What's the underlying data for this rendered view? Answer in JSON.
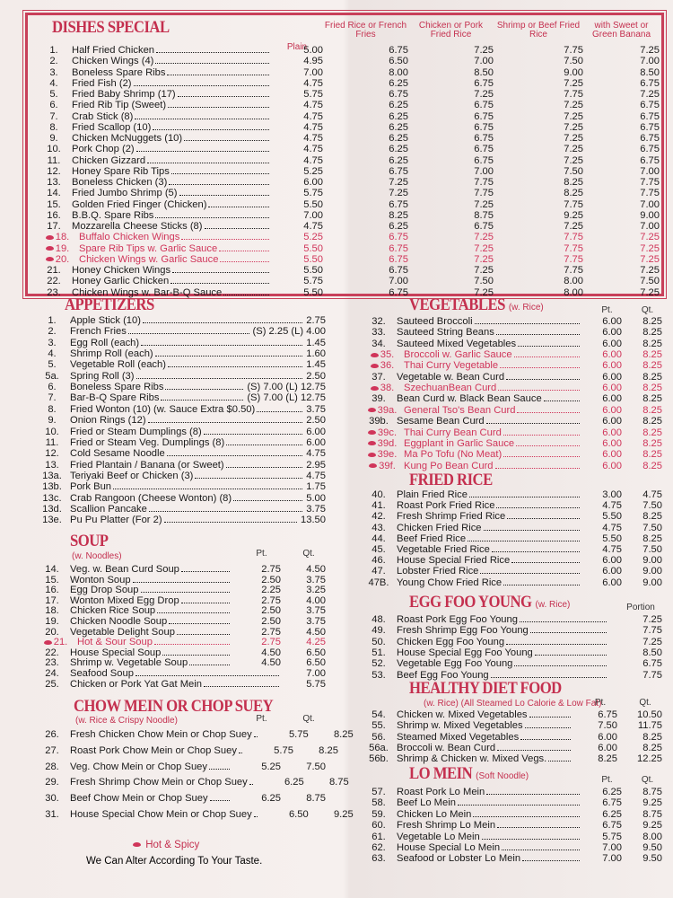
{
  "sections": [
    {
      "title": "DISHES SPECIAL",
      "columns": [
        "Plain",
        "Fried Rice or French Fries",
        "Chicken or Pork Fried Rice",
        "Shrimp or Beef Fried Rice",
        "with Sweet or Green Banana"
      ],
      "items": [
        {
          "num": "1.",
          "name": "Half Fried Chicken",
          "prices": [
            "5.00",
            "6.75",
            "7.25",
            "7.75",
            "7.25"
          ]
        },
        {
          "num": "2.",
          "name": "Chicken Wings (4)",
          "prices": [
            "4.95",
            "6.50",
            "7.00",
            "7.50",
            "7.00"
          ]
        },
        {
          "num": "3.",
          "name": "Boneless Spare Ribs",
          "prices": [
            "7.00",
            "8.00",
            "8.50",
            "9.00",
            "8.50"
          ]
        },
        {
          "num": "4.",
          "name": "Fried Fish (2)",
          "prices": [
            "4.75",
            "6.25",
            "6.75",
            "7.25",
            "6.75"
          ]
        },
        {
          "num": "5.",
          "name": "Fried Baby Shrimp (17)",
          "prices": [
            "5.75",
            "6.75",
            "7.25",
            "7.75",
            "7.25"
          ]
        },
        {
          "num": "6.",
          "name": "Fried Rib Tip (Sweet)",
          "prices": [
            "4.75",
            "6.25",
            "6.75",
            "7.25",
            "6.75"
          ]
        },
        {
          "num": "7.",
          "name": "Crab Stick (8)",
          "prices": [
            "4.75",
            "6.25",
            "6.75",
            "7.25",
            "6.75"
          ]
        },
        {
          "num": "8.",
          "name": "Fried Scallop (10)",
          "prices": [
            "4.75",
            "6.25",
            "6.75",
            "7.25",
            "6.75"
          ]
        },
        {
          "num": "9.",
          "name": "Chicken McNuggets (10)",
          "prices": [
            "4.75",
            "6.25",
            "6.75",
            "7.25",
            "6.75"
          ]
        },
        {
          "num": "10.",
          "name": "Pork Chop (2)",
          "prices": [
            "4.75",
            "6.25",
            "6.75",
            "7.25",
            "6.75"
          ]
        },
        {
          "num": "11.",
          "name": "Chicken Gizzard",
          "prices": [
            "4.75",
            "6.25",
            "6.75",
            "7.25",
            "6.75"
          ]
        },
        {
          "num": "12.",
          "name": "Honey Spare Rib Tips",
          "prices": [
            "5.25",
            "6.75",
            "7.00",
            "7.50",
            "7.00"
          ]
        },
        {
          "num": "13.",
          "name": "Boneless Chicken (3)",
          "prices": [
            "6.00",
            "7.25",
            "7.75",
            "8.25",
            "7.75"
          ]
        },
        {
          "num": "14.",
          "name": "Fried Jumbo Shrimp (5)",
          "prices": [
            "5.75",
            "7.25",
            "7.75",
            "8.25",
            "7.75"
          ]
        },
        {
          "num": "15.",
          "name": "Golden Fried Finger (Chicken)",
          "prices": [
            "5.50",
            "6.75",
            "7.25",
            "7.75",
            "7.00"
          ]
        },
        {
          "num": "16.",
          "name": "B.B.Q. Spare Ribs",
          "prices": [
            "7.00",
            "8.25",
            "8.75",
            "9.25",
            "9.00"
          ]
        },
        {
          "num": "17.",
          "name": "Mozzarella Cheese Sticks (8)",
          "prices": [
            "4.75",
            "6.25",
            "6.75",
            "7.25",
            "7.00"
          ]
        },
        {
          "num": "18.",
          "name": "Buffalo Chicken Wings",
          "prices": [
            "5.25",
            "6.75",
            "7.25",
            "7.75",
            "7.25"
          ],
          "spicy": true
        },
        {
          "num": "19.",
          "name": "Spare Rib Tips w. Garlic Sauce",
          "prices": [
            "5.50",
            "6.75",
            "7.25",
            "7.75",
            "7.25"
          ],
          "spicy": true
        },
        {
          "num": "20.",
          "name": "Chicken Wings w. Garlic Sauce",
          "prices": [
            "5.50",
            "6.75",
            "7.25",
            "7.75",
            "7.25"
          ],
          "spicy": true
        },
        {
          "num": "21.",
          "name": "Honey Chicken Wings",
          "prices": [
            "5.50",
            "6.75",
            "7.25",
            "7.75",
            "7.25"
          ]
        },
        {
          "num": "22.",
          "name": "Honey Garlic Chicken",
          "prices": [
            "5.75",
            "7.00",
            "7.50",
            "8.00",
            "7.50"
          ]
        },
        {
          "num": "23.",
          "name": "Chicken Wings w. Bar-B-Q Sauce",
          "prices": [
            "5.50",
            "6.75",
            "7.25",
            "8.00",
            "7.25"
          ]
        }
      ]
    },
    {
      "title": "APPETIZERS",
      "items": [
        {
          "num": "1.",
          "name": "Apple Stick (10)",
          "prices": [
            "2.75"
          ]
        },
        {
          "num": "2.",
          "name": "French Fries",
          "prices": [
            "(S) 2.25 (L) 4.00"
          ]
        },
        {
          "num": "3.",
          "name": "Egg Roll (each)",
          "prices": [
            "1.45"
          ]
        },
        {
          "num": "4.",
          "name": "Shrimp Roll (each)",
          "prices": [
            "1.60"
          ]
        },
        {
          "num": "5.",
          "name": "Vegetable Roll (each)",
          "prices": [
            "1.45"
          ]
        },
        {
          "num": "5a.",
          "name": "Spring Roll (3)",
          "prices": [
            "2.50"
          ]
        },
        {
          "num": "6.",
          "name": "Boneless Spare Ribs",
          "prices": [
            "(S) 7.00 (L) 12.75"
          ]
        },
        {
          "num": "7.",
          "name": "Bar-B-Q Spare Ribs",
          "prices": [
            "(S) 7.00 (L) 12.75"
          ]
        },
        {
          "num": "8.",
          "name": "Fried Wonton (10) (w. Sauce Extra $0.50)",
          "prices": [
            "3.75"
          ]
        },
        {
          "num": "9.",
          "name": "Onion Rings (12)",
          "prices": [
            "2.50"
          ]
        },
        {
          "num": "10.",
          "name": "Fried or Steam Dumplings (8)",
          "prices": [
            "6.00"
          ]
        },
        {
          "num": "11.",
          "name": "Fried or Steam Veg. Dumplings (8)",
          "prices": [
            "6.00"
          ]
        },
        {
          "num": "12.",
          "name": "Cold Sesame Noodle",
          "prices": [
            "4.75"
          ]
        },
        {
          "num": "13.",
          "name": "Fried Plantain / Banana (or Sweet)",
          "prices": [
            "2.95"
          ]
        },
        {
          "num": "13a.",
          "name": "Teriyaki Beef or Chicken (3)",
          "prices": [
            "4.75"
          ]
        },
        {
          "num": "13b.",
          "name": "Pork Bun",
          "prices": [
            "1.75"
          ]
        },
        {
          "num": "13c.",
          "name": "Crab Rangoon (Cheese Wonton) (8)",
          "prices": [
            "5.00"
          ]
        },
        {
          "num": "13d.",
          "name": "Scallion Pancake",
          "prices": [
            "3.75"
          ]
        },
        {
          "num": "13e.",
          "name": "Pu Pu Platter (For 2)",
          "prices": [
            "13.50"
          ]
        }
      ]
    },
    {
      "title": "SOUP",
      "note": "(w. Noodles)",
      "columns": [
        "Pt.",
        "Qt."
      ],
      "items": [
        {
          "num": "14.",
          "name": "Veg. w. Bean Curd Soup",
          "prices": [
            "2.75",
            "4.50"
          ]
        },
        {
          "num": "15.",
          "name": "Wonton Soup",
          "prices": [
            "2.50",
            "3.75"
          ]
        },
        {
          "num": "16.",
          "name": "Egg Drop Soup",
          "prices": [
            "2.25",
            "3.25"
          ]
        },
        {
          "num": "17.",
          "name": "Wonton Mixed Egg Drop",
          "prices": [
            "2.75",
            "4.00"
          ]
        },
        {
          "num": "18.",
          "name": "Chicken Rice Soup",
          "prices": [
            "2.50",
            "3.75"
          ]
        },
        {
          "num": "19.",
          "name": "Chicken Noodle Soup",
          "prices": [
            "2.50",
            "3.75"
          ]
        },
        {
          "num": "20.",
          "name": "Vegetable Delight Soup",
          "prices": [
            "2.75",
            "4.50"
          ]
        },
        {
          "num": "21.",
          "name": "Hot & Sour Soup",
          "prices": [
            "2.75",
            "4.25"
          ],
          "spicy": true
        },
        {
          "num": "22.",
          "name": "House Special Soup",
          "prices": [
            "4.50",
            "6.50"
          ]
        },
        {
          "num": "23.",
          "name": "Shrimp w. Vegetable Soup",
          "prices": [
            "4.50",
            "6.50"
          ]
        },
        {
          "num": "24.",
          "name": "Seafood Soup",
          "prices": [
            "7.00"
          ]
        },
        {
          "num": "25.",
          "name": "Chicken or Pork Yat Gat Mein",
          "prices": [
            "5.75"
          ]
        }
      ]
    },
    {
      "title": "CHOW MEIN OR CHOP SUEY",
      "note": "(w. Rice & Crispy Noodle)",
      "columns": [
        "Pt.",
        "Qt."
      ],
      "items": [
        {
          "num": "26.",
          "name": "Fresh Chicken Chow Mein or Chop Suey",
          "prices": [
            "5.75",
            "8.25"
          ]
        },
        {
          "num": "27.",
          "name": "Roast Pork Chow Mein or Chop Suey",
          "prices": [
            "5.75",
            "8.25"
          ]
        },
        {
          "num": "28.",
          "name": "Veg. Chow Mein or Chop Suey",
          "prices": [
            "5.25",
            "7.50"
          ]
        },
        {
          "num": "29.",
          "name": "Fresh Shrimp Chow Mein or Chop Suey",
          "prices": [
            "6.25",
            "8.75"
          ]
        },
        {
          "num": "30.",
          "name": "Beef Chow Mein or Chop Suey",
          "prices": [
            "6.25",
            "8.75"
          ]
        },
        {
          "num": "31.",
          "name": "House Special Chow Mein or Chop Suey",
          "prices": [
            "6.50",
            "9.25"
          ]
        }
      ]
    },
    {
      "title": "VEGETABLES",
      "note": "(w. Rice)",
      "columns": [
        "Pt.",
        "Qt."
      ],
      "items": [
        {
          "num": "32.",
          "name": "Sauteed Broccoli",
          "prices": [
            "6.00",
            "8.25"
          ]
        },
        {
          "num": "33.",
          "name": "Sauteed String Beans",
          "prices": [
            "6.00",
            "8.25"
          ]
        },
        {
          "num": "34.",
          "name": "Sauteed Mixed Vegetables",
          "prices": [
            "6.00",
            "8.25"
          ]
        },
        {
          "num": "35.",
          "name": "Broccoli w. Garlic Sauce",
          "prices": [
            "6.00",
            "8.25"
          ],
          "spicy": true
        },
        {
          "num": "36.",
          "name": "Thai Curry Vegetable",
          "prices": [
            "6.00",
            "8.25"
          ],
          "spicy": true
        },
        {
          "num": "37.",
          "name": "Vegetable w. Bean Curd",
          "prices": [
            "6.00",
            "8.25"
          ]
        },
        {
          "num": "38.",
          "name": "SzechuanBean Curd",
          "prices": [
            "6.00",
            "8.25"
          ],
          "spicy": true
        },
        {
          "num": "39.",
          "name": "Bean Curd w. Black Bean Sauce",
          "prices": [
            "6.00",
            "8.25"
          ]
        },
        {
          "num": "39a.",
          "name": "General Tso's Bean Curd",
          "prices": [
            "6.00",
            "8.25"
          ],
          "spicy": true
        },
        {
          "num": "39b.",
          "name": "Sesame Bean Curd",
          "prices": [
            "6.00",
            "8.25"
          ]
        },
        {
          "num": "39c.",
          "name": "Thai Curry Bean Curd",
          "prices": [
            "6.00",
            "8.25"
          ],
          "spicy": true
        },
        {
          "num": "39d.",
          "name": "Eggplant in Garlic Sauce",
          "prices": [
            "6.00",
            "8.25"
          ],
          "spicy": true
        },
        {
          "num": "39e.",
          "name": "Ma Po Tofu (No Meat)",
          "prices": [
            "6.00",
            "8.25"
          ],
          "spicy": true
        },
        {
          "num": "39f.",
          "name": "Kung Po Bean Curd",
          "prices": [
            "6.00",
            "8.25"
          ],
          "spicy": true
        }
      ]
    },
    {
      "title": "FRIED RICE",
      "items": [
        {
          "num": "40.",
          "name": "Plain Fried Rice",
          "prices": [
            "3.00",
            "4.75"
          ]
        },
        {
          "num": "41.",
          "name": "Roast Pork Fried Rice",
          "prices": [
            "4.75",
            "7.50"
          ]
        },
        {
          "num": "42.",
          "name": "Fresh Shrimp Fried Rice",
          "prices": [
            "5.50",
            "8.25"
          ]
        },
        {
          "num": "43.",
          "name": "Chicken Fried Rice",
          "prices": [
            "4.75",
            "7.50"
          ]
        },
        {
          "num": "44.",
          "name": "Beef Fried Rice",
          "prices": [
            "5.50",
            "8.25"
          ]
        },
        {
          "num": "45.",
          "name": "Vegetable Fried Rice",
          "prices": [
            "4.75",
            "7.50"
          ]
        },
        {
          "num": "46.",
          "name": "House Special Fried Rice",
          "prices": [
            "6.00",
            "9.00"
          ]
        },
        {
          "num": "47.",
          "name": "Lobster Fried Rice",
          "prices": [
            "6.00",
            "9.00"
          ]
        },
        {
          "num": "47B.",
          "name": "Young Chow Fried Rice",
          "prices": [
            "6.00",
            "9.00"
          ]
        }
      ]
    },
    {
      "title": "EGG FOO YOUNG",
      "note": "(w. Rice)",
      "columns": [
        "Portion"
      ],
      "items": [
        {
          "num": "48.",
          "name": "Roast Pork Egg Foo Young",
          "prices": [
            "7.25"
          ]
        },
        {
          "num": "49.",
          "name": "Fresh Shrimp Egg Foo Young",
          "prices": [
            "7.75"
          ]
        },
        {
          "num": "50.",
          "name": "Chicken Egg Foo Young",
          "prices": [
            "7.25"
          ]
        },
        {
          "num": "51.",
          "name": "House Special Egg Foo Young",
          "prices": [
            "8.50"
          ]
        },
        {
          "num": "52.",
          "name": "Vegetable Egg Foo Young",
          "prices": [
            "6.75"
          ]
        },
        {
          "num": "53.",
          "name": "Beef Egg Foo Young",
          "prices": [
            "7.75"
          ]
        }
      ]
    },
    {
      "title": "HEALTHY DIET FOOD",
      "note": "(w. Rice) (All Steamed Lo Calorie & Low Fat)",
      "columns": [
        "Pt.",
        "Qt."
      ],
      "items": [
        {
          "num": "54.",
          "name": "Chicken w. Mixed Vegetables",
          "prices": [
            "6.75",
            "10.50"
          ]
        },
        {
          "num": "55.",
          "name": "Shrimp w. Mixed Vegetables",
          "prices": [
            "7.50",
            "11.75"
          ]
        },
        {
          "num": "56.",
          "name": "Steamed Mixed Vegetables",
          "prices": [
            "6.00",
            "8.25"
          ]
        },
        {
          "num": "56a.",
          "name": "Broccoli w. Bean Curd",
          "prices": [
            "6.00",
            "8.25"
          ]
        },
        {
          "num": "56b.",
          "name": "Shrimp & Chicken w. Mixed Vegs.",
          "prices": [
            "8.25",
            "12.25"
          ]
        }
      ]
    },
    {
      "title": "LO MEIN",
      "note": "(Soft Noodle)",
      "columns": [
        "Pt.",
        "Qt."
      ],
      "items": [
        {
          "num": "57.",
          "name": "Roast Pork Lo Mein",
          "prices": [
            "6.25",
            "8.75"
          ]
        },
        {
          "num": "58.",
          "name": "Beef Lo Mein",
          "prices": [
            "6.75",
            "9.25"
          ]
        },
        {
          "num": "59.",
          "name": "Chicken Lo Mein",
          "prices": [
            "6.25",
            "8.75"
          ]
        },
        {
          "num": "60.",
          "name": "Fresh Shrimp Lo Mein",
          "prices": [
            "6.75",
            "9.25"
          ]
        },
        {
          "num": "61.",
          "name": "Vegetable Lo Mein",
          "prices": [
            "5.75",
            "8.00"
          ]
        },
        {
          "num": "62.",
          "name": "House Special Lo Mein",
          "prices": [
            "7.00",
            "9.50"
          ]
        },
        {
          "num": "63.",
          "name": "Seafood or Lobster Lo Mein",
          "prices": [
            "7.00",
            "9.50"
          ]
        }
      ]
    }
  ],
  "footer": {
    "spicy_legend": "Hot & Spicy",
    "note": "We Can Alter According To Your Taste."
  }
}
